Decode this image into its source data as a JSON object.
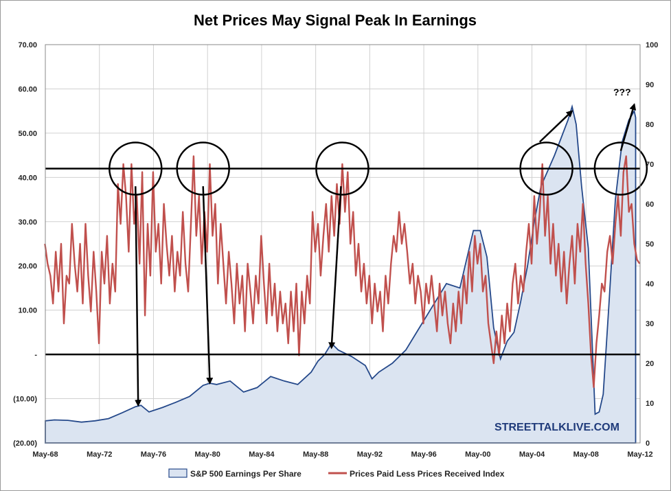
{
  "chart_data": {
    "type": "area+line",
    "title": "Net Prices May Signal Peak In Earnings",
    "x_labels": [
      "May-68",
      "May-72",
      "May-76",
      "May-80",
      "May-84",
      "May-88",
      "May-92",
      "May-96",
      "May-00",
      "May-04",
      "May-08",
      "May-12"
    ],
    "x_start": 1968.33,
    "x_end": 2012.33,
    "y_left": {
      "ticks": [
        "70.00",
        "60.00",
        "50.00",
        "40.00",
        "30.00",
        "20.00",
        "10.00",
        "-",
        "(10.00)",
        "(20.00)"
      ],
      "min": -20,
      "max": 70
    },
    "y_right": {
      "ticks": [
        "100",
        "90",
        "80",
        "70",
        "60",
        "50",
        "40",
        "30",
        "20",
        "10",
        "0"
      ],
      "min": 0,
      "max": 100
    },
    "legend": [
      "S&P 500 Earnings Per Share",
      "Prices Paid Less Prices Received Index"
    ],
    "horizontal_lines_left": [
      42,
      0
    ],
    "earnings": {
      "name": "S&P 500 Earnings Per Share",
      "axis": "left",
      "points": [
        [
          1968.33,
          -15
        ],
        [
          1969.0,
          -14.8
        ],
        [
          1970.0,
          -14.9
        ],
        [
          1971.0,
          -15.3
        ],
        [
          1972.0,
          -15.0
        ],
        [
          1973.0,
          -14.5
        ],
        [
          1974.0,
          -13.2
        ],
        [
          1975.0,
          -11.8
        ],
        [
          1975.4,
          -11.5
        ],
        [
          1976.0,
          -13.0
        ],
        [
          1977.0,
          -12.0
        ],
        [
          1978.0,
          -10.8
        ],
        [
          1979.0,
          -9.5
        ],
        [
          1980.0,
          -7.0
        ],
        [
          1980.5,
          -6.5
        ],
        [
          1981.0,
          -6.8
        ],
        [
          1982.0,
          -6.0
        ],
        [
          1983.0,
          -8.5
        ],
        [
          1984.0,
          -7.5
        ],
        [
          1985.0,
          -5.0
        ],
        [
          1986.0,
          -6.0
        ],
        [
          1987.0,
          -6.8
        ],
        [
          1988.0,
          -4.0
        ],
        [
          1988.5,
          -1.5
        ],
        [
          1989.0,
          0.0
        ],
        [
          1989.5,
          2.5
        ],
        [
          1990.0,
          1.0
        ],
        [
          1991.0,
          -0.5
        ],
        [
          1992.0,
          -2.5
        ],
        [
          1992.5,
          -5.5
        ],
        [
          1993.0,
          -4.0
        ],
        [
          1994.0,
          -2.0
        ],
        [
          1995.0,
          1.0
        ],
        [
          1996.0,
          6.0
        ],
        [
          1997.0,
          11.0
        ],
        [
          1998.0,
          16.0
        ],
        [
          1999.0,
          15.0
        ],
        [
          2000.0,
          28.0
        ],
        [
          2000.5,
          28.0
        ],
        [
          2001.0,
          22.0
        ],
        [
          2001.5,
          6.0
        ],
        [
          2002.0,
          -1.0
        ],
        [
          2002.5,
          3.0
        ],
        [
          2003.0,
          5.0
        ],
        [
          2003.5,
          12.0
        ],
        [
          2004.0,
          20.0
        ],
        [
          2004.5,
          30.0
        ],
        [
          2005.0,
          38.0
        ],
        [
          2006.0,
          45.0
        ],
        [
          2007.0,
          53.0
        ],
        [
          2007.3,
          56.0
        ],
        [
          2007.6,
          52.0
        ],
        [
          2008.0,
          38.0
        ],
        [
          2008.5,
          24.0
        ],
        [
          2009.0,
          -13.5
        ],
        [
          2009.3,
          -13.0
        ],
        [
          2009.6,
          -9.0
        ],
        [
          2010.0,
          10.0
        ],
        [
          2010.5,
          35.0
        ],
        [
          2011.0,
          48.0
        ],
        [
          2011.5,
          53.0
        ],
        [
          2011.9,
          55.0
        ],
        [
          2012.0,
          53.5
        ]
      ]
    },
    "prices_index": {
      "name": "Prices Paid Less Prices Received Index",
      "axis": "right",
      "points": [
        [
          1968.3,
          50
        ],
        [
          1968.5,
          45
        ],
        [
          1968.7,
          42
        ],
        [
          1968.9,
          35
        ],
        [
          1969.1,
          48
        ],
        [
          1969.3,
          38
        ],
        [
          1969.5,
          50
        ],
        [
          1969.7,
          30
        ],
        [
          1969.9,
          42
        ],
        [
          1970.1,
          40
        ],
        [
          1970.3,
          55
        ],
        [
          1970.5,
          45
        ],
        [
          1970.7,
          38
        ],
        [
          1970.9,
          50
        ],
        [
          1971.1,
          35
        ],
        [
          1971.3,
          55
        ],
        [
          1971.5,
          42
        ],
        [
          1971.7,
          33
        ],
        [
          1971.9,
          48
        ],
        [
          1972.1,
          38
        ],
        [
          1972.3,
          25
        ],
        [
          1972.5,
          48
        ],
        [
          1972.7,
          40
        ],
        [
          1972.9,
          52
        ],
        [
          1973.1,
          35
        ],
        [
          1973.3,
          45
        ],
        [
          1973.5,
          38
        ],
        [
          1973.7,
          65
        ],
        [
          1973.9,
          55
        ],
        [
          1974.1,
          70
        ],
        [
          1974.3,
          62
        ],
        [
          1974.5,
          48
        ],
        [
          1974.7,
          70
        ],
        [
          1974.9,
          55
        ],
        [
          1975.1,
          62
        ],
        [
          1975.3,
          45
        ],
        [
          1975.5,
          68
        ],
        [
          1975.7,
          32
        ],
        [
          1975.9,
          55
        ],
        [
          1976.1,
          42
        ],
        [
          1976.3,
          68
        ],
        [
          1976.5,
          48
        ],
        [
          1976.7,
          55
        ],
        [
          1976.9,
          40
        ],
        [
          1977.1,
          60
        ],
        [
          1977.3,
          50
        ],
        [
          1977.5,
          42
        ],
        [
          1977.7,
          52
        ],
        [
          1977.9,
          38
        ],
        [
          1978.1,
          48
        ],
        [
          1978.3,
          42
        ],
        [
          1978.5,
          58
        ],
        [
          1978.7,
          45
        ],
        [
          1978.9,
          38
        ],
        [
          1979.1,
          55
        ],
        [
          1979.3,
          72
        ],
        [
          1979.5,
          52
        ],
        [
          1979.7,
          62
        ],
        [
          1979.9,
          45
        ],
        [
          1980.1,
          58
        ],
        [
          1980.3,
          48
        ],
        [
          1980.5,
          70
        ],
        [
          1980.7,
          52
        ],
        [
          1980.9,
          60
        ],
        [
          1981.1,
          40
        ],
        [
          1981.3,
          55
        ],
        [
          1981.5,
          45
        ],
        [
          1981.7,
          35
        ],
        [
          1981.9,
          48
        ],
        [
          1982.1,
          40
        ],
        [
          1982.3,
          30
        ],
        [
          1982.5,
          45
        ],
        [
          1982.7,
          35
        ],
        [
          1982.9,
          42
        ],
        [
          1983.1,
          28
        ],
        [
          1983.3,
          45
        ],
        [
          1983.5,
          38
        ],
        [
          1983.7,
          30
        ],
        [
          1983.9,
          42
        ],
        [
          1984.1,
          35
        ],
        [
          1984.3,
          52
        ],
        [
          1984.5,
          40
        ],
        [
          1984.7,
          30
        ],
        [
          1984.9,
          45
        ],
        [
          1985.1,
          32
        ],
        [
          1985.3,
          40
        ],
        [
          1985.5,
          28
        ],
        [
          1985.7,
          38
        ],
        [
          1985.9,
          30
        ],
        [
          1986.1,
          35
        ],
        [
          1986.3,
          25
        ],
        [
          1986.5,
          38
        ],
        [
          1986.7,
          28
        ],
        [
          1986.9,
          40
        ],
        [
          1987.1,
          22
        ],
        [
          1987.3,
          38
        ],
        [
          1987.5,
          30
        ],
        [
          1987.7,
          42
        ],
        [
          1987.9,
          35
        ],
        [
          1988.1,
          58
        ],
        [
          1988.3,
          48
        ],
        [
          1988.5,
          55
        ],
        [
          1988.7,
          42
        ],
        [
          1988.9,
          52
        ],
        [
          1989.1,
          60
        ],
        [
          1989.3,
          48
        ],
        [
          1989.5,
          62
        ],
        [
          1989.7,
          52
        ],
        [
          1989.9,
          65
        ],
        [
          1990.1,
          55
        ],
        [
          1990.3,
          70
        ],
        [
          1990.5,
          58
        ],
        [
          1990.7,
          68
        ],
        [
          1990.9,
          50
        ],
        [
          1991.1,
          58
        ],
        [
          1991.3,
          42
        ],
        [
          1991.5,
          50
        ],
        [
          1991.7,
          38
        ],
        [
          1991.9,
          45
        ],
        [
          1992.1,
          35
        ],
        [
          1992.3,
          42
        ],
        [
          1992.5,
          30
        ],
        [
          1992.7,
          40
        ],
        [
          1992.9,
          33
        ],
        [
          1993.1,
          38
        ],
        [
          1993.3,
          28
        ],
        [
          1993.5,
          42
        ],
        [
          1993.7,
          35
        ],
        [
          1993.9,
          45
        ],
        [
          1994.1,
          52
        ],
        [
          1994.3,
          48
        ],
        [
          1994.5,
          58
        ],
        [
          1994.7,
          50
        ],
        [
          1994.9,
          55
        ],
        [
          1995.1,
          48
        ],
        [
          1995.3,
          40
        ],
        [
          1995.5,
          45
        ],
        [
          1995.7,
          35
        ],
        [
          1995.9,
          42
        ],
        [
          1996.1,
          38
        ],
        [
          1996.3,
          30
        ],
        [
          1996.5,
          40
        ],
        [
          1996.7,
          35
        ],
        [
          1996.9,
          42
        ],
        [
          1997.1,
          35
        ],
        [
          1997.3,
          28
        ],
        [
          1997.5,
          40
        ],
        [
          1997.7,
          32
        ],
        [
          1997.9,
          38
        ],
        [
          1998.1,
          30
        ],
        [
          1998.3,
          25
        ],
        [
          1998.5,
          35
        ],
        [
          1998.7,
          28
        ],
        [
          1998.9,
          38
        ],
        [
          1999.1,
          30
        ],
        [
          1999.3,
          42
        ],
        [
          1999.5,
          35
        ],
        [
          1999.7,
          48
        ],
        [
          1999.9,
          38
        ],
        [
          2000.1,
          52
        ],
        [
          2000.3,
          45
        ],
        [
          2000.5,
          50
        ],
        [
          2000.7,
          38
        ],
        [
          2000.9,
          42
        ],
        [
          2001.1,
          30
        ],
        [
          2001.3,
          25
        ],
        [
          2001.5,
          20
        ],
        [
          2001.7,
          28
        ],
        [
          2001.9,
          22
        ],
        [
          2002.1,
          32
        ],
        [
          2002.3,
          25
        ],
        [
          2002.5,
          35
        ],
        [
          2002.7,
          28
        ],
        [
          2002.9,
          40
        ],
        [
          2003.1,
          45
        ],
        [
          2003.3,
          35
        ],
        [
          2003.5,
          42
        ],
        [
          2003.7,
          38
        ],
        [
          2003.9,
          48
        ],
        [
          2004.1,
          55
        ],
        [
          2004.3,
          45
        ],
        [
          2004.5,
          62
        ],
        [
          2004.7,
          50
        ],
        [
          2004.9,
          58
        ],
        [
          2005.1,
          70
        ],
        [
          2005.3,
          52
        ],
        [
          2005.5,
          62
        ],
        [
          2005.7,
          45
        ],
        [
          2005.9,
          55
        ],
        [
          2006.1,
          42
        ],
        [
          2006.3,
          50
        ],
        [
          2006.5,
          38
        ],
        [
          2006.7,
          48
        ],
        [
          2006.9,
          35
        ],
        [
          2007.1,
          45
        ],
        [
          2007.3,
          52
        ],
        [
          2007.5,
          40
        ],
        [
          2007.7,
          55
        ],
        [
          2007.9,
          48
        ],
        [
          2008.1,
          60
        ],
        [
          2008.3,
          45
        ],
        [
          2008.5,
          35
        ],
        [
          2008.7,
          22
        ],
        [
          2008.9,
          14
        ],
        [
          2009.1,
          25
        ],
        [
          2009.3,
          32
        ],
        [
          2009.5,
          40
        ],
        [
          2009.7,
          38
        ],
        [
          2009.9,
          48
        ],
        [
          2010.1,
          52
        ],
        [
          2010.3,
          45
        ],
        [
          2010.5,
          55
        ],
        [
          2010.7,
          62
        ],
        [
          2010.9,
          52
        ],
        [
          2011.1,
          68
        ],
        [
          2011.3,
          72
        ],
        [
          2011.5,
          58
        ],
        [
          2011.7,
          60
        ],
        [
          2011.9,
          50
        ],
        [
          2012.1,
          46
        ],
        [
          2012.3,
          45
        ]
      ]
    },
    "annotations": {
      "question": "???",
      "circles": [
        {
          "x": 1975.0,
          "y_left": 42
        },
        {
          "x": 1980.0,
          "y_left": 42
        },
        {
          "x": 1990.3,
          "y_left": 42
        },
        {
          "x": 2005.4,
          "y_left": 42
        },
        {
          "x": 2010.9,
          "y_left": 42
        }
      ],
      "arrows": [
        {
          "from": [
            1975.0,
            38
          ],
          "to": [
            1975.2,
            -11.5
          ]
        },
        {
          "from": [
            1980.0,
            38
          ],
          "to": [
            1980.5,
            -6.5
          ]
        },
        {
          "from": [
            1990.2,
            38
          ],
          "to": [
            1989.5,
            1.5
          ]
        },
        {
          "from": [
            2004.9,
            48
          ],
          "to": [
            2007.3,
            55.0
          ]
        },
        {
          "from": [
            2010.9,
            46
          ],
          "to": [
            2011.9,
            56.5
          ]
        }
      ]
    },
    "watermark": "STREETTALKLIVE.COM"
  }
}
